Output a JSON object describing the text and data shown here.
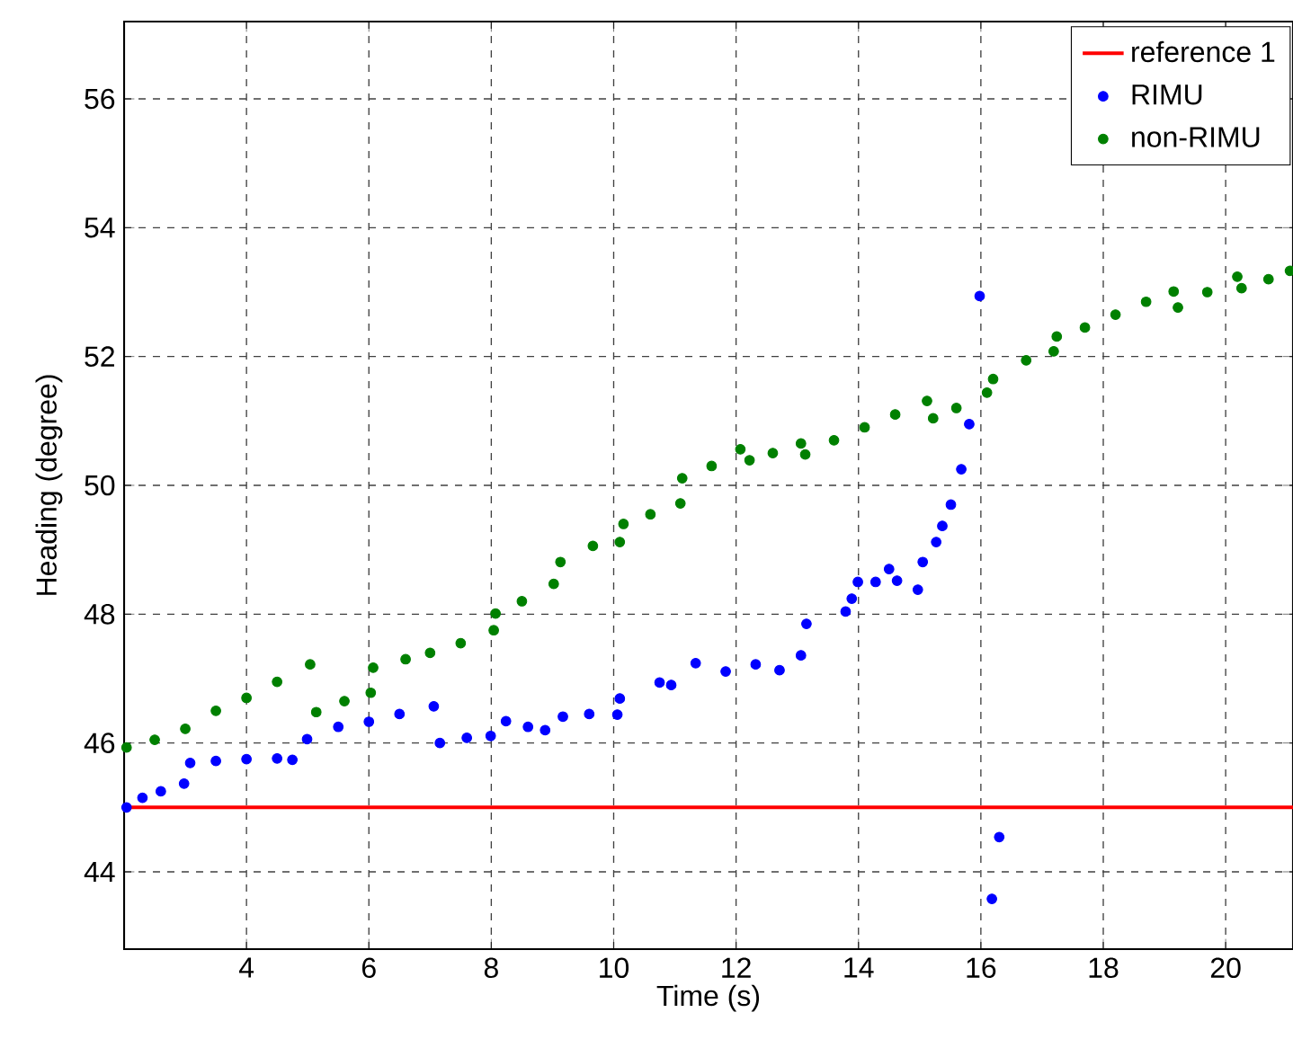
{
  "chart_data": {
    "type": "scatter",
    "xlabel": "Time (s)",
    "ylabel": "Heading (degree)",
    "xlim": [
      2,
      21.1
    ],
    "ylim": [
      42.8,
      57.2
    ],
    "xticks": [
      4,
      6,
      8,
      10,
      12,
      14,
      16,
      18,
      20
    ],
    "yticks": [
      44,
      46,
      48,
      50,
      52,
      54,
      56
    ],
    "grid": true,
    "legend": "top right",
    "series": [
      {
        "name": "reference 1",
        "type": "line",
        "line_style": "solid",
        "marker": "none",
        "color": "#ff0000",
        "x": [
          2,
          21.1
        ],
        "values": [
          45,
          45
        ]
      },
      {
        "name": "RIMU",
        "marker": "circle",
        "color": "#0000ff",
        "x": [
          2.04,
          2.3,
          2.6,
          2.98,
          3.08,
          3.5,
          4.0,
          4.5,
          4.75,
          4.99,
          5.5,
          6.0,
          6.5,
          7.06,
          7.16,
          7.6,
          7.99,
          8.24,
          8.6,
          8.88,
          9.17,
          9.6,
          10.06,
          10.1,
          10.75,
          10.94,
          11.34,
          11.83,
          12.32,
          12.71,
          13.06,
          13.15,
          13.79,
          13.89,
          13.99,
          14.28,
          14.5,
          14.63,
          14.97,
          15.05,
          15.27,
          15.37,
          15.51,
          15.68,
          15.81,
          15.98,
          16.18,
          16.3
        ],
        "values": [
          45.0,
          45.15,
          45.25,
          45.37,
          45.69,
          45.72,
          45.75,
          45.76,
          45.74,
          46.06,
          46.25,
          46.33,
          46.45,
          46.57,
          46.0,
          46.08,
          46.11,
          46.34,
          46.25,
          46.2,
          46.41,
          46.45,
          46.44,
          46.69,
          46.94,
          46.9,
          47.24,
          47.11,
          47.22,
          47.13,
          47.36,
          47.85,
          48.04,
          48.24,
          48.5,
          48.5,
          48.7,
          48.52,
          48.38,
          48.81,
          49.12,
          49.37,
          49.7,
          50.25,
          50.95,
          52.94,
          43.58,
          44.54
        ]
      },
      {
        "name": "non-RIMU",
        "marker": "circle",
        "color": "#008000",
        "x": [
          2.04,
          2.5,
          3.0,
          3.5,
          4.0,
          4.5,
          5.04,
          5.14,
          5.6,
          6.03,
          6.07,
          6.6,
          7.0,
          7.5,
          8.04,
          8.07,
          8.5,
          9.02,
          9.13,
          9.66,
          10.1,
          10.16,
          10.6,
          11.09,
          11.12,
          11.6,
          12.07,
          12.22,
          12.6,
          13.06,
          13.13,
          13.6,
          14.1,
          14.6,
          15.12,
          15.22,
          15.6,
          16.1,
          16.2,
          16.74,
          17.19,
          17.24,
          17.7,
          18.2,
          18.7,
          19.15,
          19.22,
          19.7,
          20.19,
          20.26,
          20.7,
          21.05
        ],
        "values": [
          45.93,
          46.05,
          46.22,
          46.5,
          46.7,
          46.95,
          47.22,
          46.48,
          46.65,
          46.78,
          47.17,
          47.3,
          47.4,
          47.55,
          47.75,
          48.01,
          48.2,
          48.47,
          48.81,
          49.06,
          49.12,
          49.4,
          49.55,
          49.72,
          50.11,
          50.3,
          50.56,
          50.39,
          50.5,
          50.65,
          50.48,
          50.7,
          50.9,
          51.1,
          51.31,
          51.04,
          51.2,
          51.44,
          51.65,
          51.94,
          52.08,
          52.31,
          52.45,
          52.65,
          52.85,
          53.01,
          52.76,
          53.0,
          53.24,
          53.06,
          53.2,
          53.33
        ]
      }
    ]
  }
}
